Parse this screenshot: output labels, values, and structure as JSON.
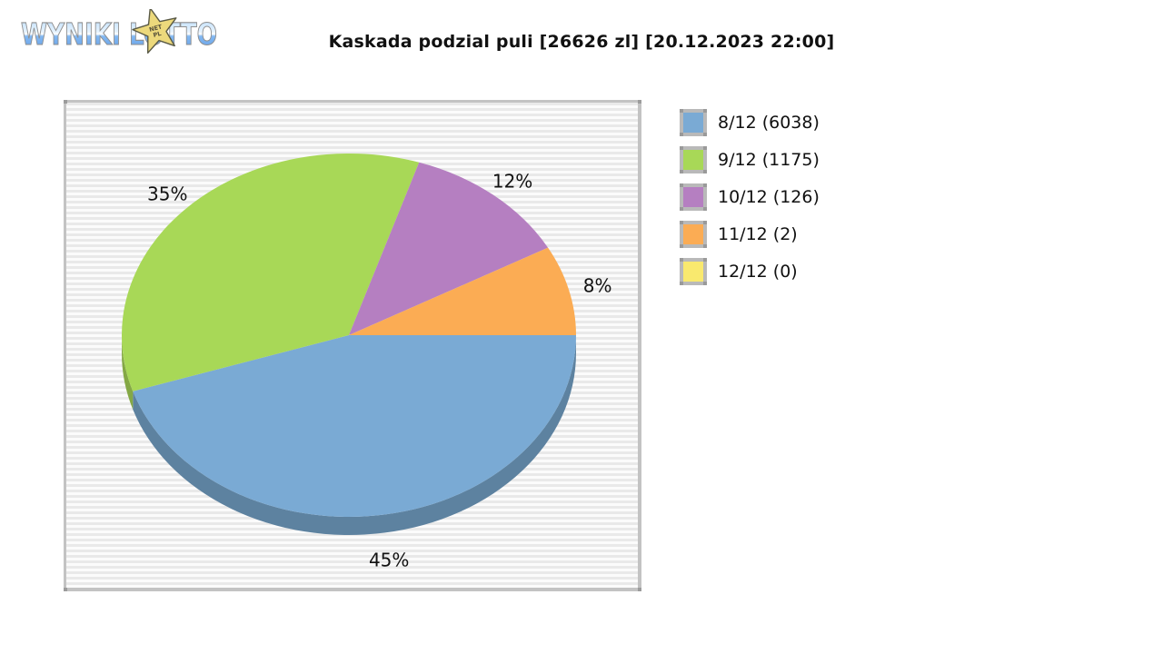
{
  "logo": {
    "text": "WYNIKI LOTTO",
    "star_line1": "NET",
    "star_line2": "PL"
  },
  "title": "Kaskada podzial puli [26626 zl] [20.12.2023 22:00]",
  "chart_data": {
    "type": "pie",
    "title": "Kaskada podzial puli [26626 zl] [20.12.2023 22:00]",
    "game": "Kaskada",
    "pool": "26626 zl",
    "draw_datetime": "20.12.2023 22:00",
    "legend_position": "right",
    "start_angle_deg": 0,
    "direction": "clockwise",
    "effect": "3d",
    "slices": [
      {
        "label": "8/12 (6038)",
        "tier": "8/12",
        "winners": 6038,
        "percent": 45,
        "pct_label": "45%",
        "color": "#7aaad4",
        "side_color": "#5d82a0"
      },
      {
        "label": "9/12 (1175)",
        "tier": "9/12",
        "winners": 1175,
        "percent": 35,
        "pct_label": "35%",
        "color": "#a8d857",
        "side_color": "#84a845"
      },
      {
        "label": "10/12 (126)",
        "tier": "10/12",
        "winners": 126,
        "percent": 12,
        "pct_label": "12%",
        "color": "#b57fc1",
        "side_color": "#8f649b"
      },
      {
        "label": "11/12 (2)",
        "tier": "11/12",
        "winners": 2,
        "percent": 8,
        "pct_label": "8%",
        "color": "#fbac54",
        "side_color": "#c5873f"
      },
      {
        "label": "12/12 (0)",
        "tier": "12/12",
        "winners": 0,
        "percent": 0,
        "pct_label": "",
        "color": "#f9e96e",
        "side_color": "#c0b354"
      }
    ]
  }
}
